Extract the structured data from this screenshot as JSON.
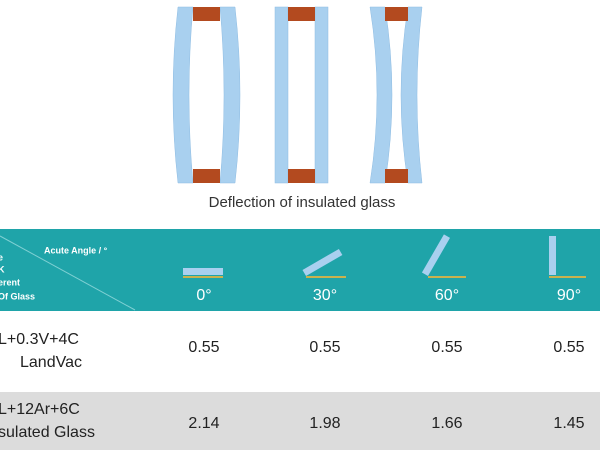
{
  "diagram": {
    "caption": "Deflection of insulated glass"
  },
  "table": {
    "corner": {
      "column_title": "Acute Angle / °",
      "row_title_lines": [
        "e",
        "K",
        "erent",
        "Of Glass"
      ]
    },
    "columns": [
      "0°",
      "30°",
      "60°",
      "90°"
    ],
    "rows": [
      {
        "label_lines": [
          "L+0.3V+4C",
          "LandVac"
        ],
        "values": [
          0.55,
          0.55,
          0.55,
          0.55
        ]
      },
      {
        "label_lines": [
          "L+12Ar+6C",
          "sulated Glass"
        ],
        "values": [
          2.14,
          1.98,
          1.66,
          1.45
        ]
      }
    ]
  }
}
